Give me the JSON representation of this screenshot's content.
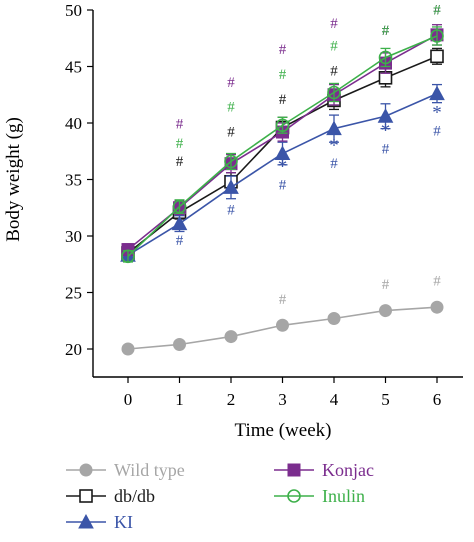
{
  "chart_data": {
    "type": "line",
    "xlabel": "Time (week)",
    "ylabel": "Body weight (g)",
    "x": [
      0,
      1,
      2,
      3,
      4,
      5,
      6
    ],
    "xticks": [
      "0",
      "1",
      "2",
      "3",
      "4",
      "5",
      "6"
    ],
    "yticks": [
      "20",
      "25",
      "30",
      "35",
      "40",
      "45",
      "50"
    ],
    "xlim": [
      -0.6,
      6.6
    ],
    "ylim": [
      17,
      50
    ],
    "grid": false,
    "legend_position": "bottom",
    "series": [
      {
        "name": "Wild type",
        "color": "#a6a6a6",
        "marker": "circle-filled",
        "values": [
          20.0,
          20.4,
          21.1,
          22.1,
          22.7,
          23.4,
          23.7
        ],
        "errors": [
          0.2,
          0.2,
          0.2,
          0.3,
          0.3,
          0.3,
          0.3
        ],
        "annotations": [
          {
            "x": 3,
            "y": 24.0,
            "text": "#",
            "color": "#a6a6a6"
          },
          {
            "x": 5,
            "y": 25.3,
            "text": "#",
            "color": "#a6a6a6"
          },
          {
            "x": 6,
            "y": 25.6,
            "text": "#",
            "color": "#a6a6a6"
          }
        ]
      },
      {
        "name": "db/db",
        "color": "#1a1a1a",
        "marker": "square-open",
        "values": [
          28.5,
          32.1,
          34.8,
          39.6,
          42.0,
          44.0,
          45.9
        ],
        "errors": [
          0.5,
          0.6,
          0.8,
          0.9,
          0.8,
          0.8,
          0.7
        ],
        "annotations": [
          {
            "x": 1,
            "y": 36.2,
            "text": "#",
            "color": "#1a1a1a"
          },
          {
            "x": 2,
            "y": 38.8,
            "text": "#",
            "color": "#1a1a1a"
          },
          {
            "x": 3,
            "y": 41.7,
            "text": "#",
            "color": "#1a1a1a"
          },
          {
            "x": 4,
            "y": 44.2,
            "text": "#",
            "color": "#1a1a1a"
          },
          {
            "x": 5,
            "y": 47.8,
            "text": "#",
            "color": "#1a1a1a"
          },
          {
            "x": 6,
            "y": 49.6,
            "text": "#",
            "color": "#1a1a1a"
          }
        ]
      },
      {
        "name": "KI",
        "color": "#3b55a8",
        "marker": "triangle-filled",
        "values": [
          28.3,
          31.1,
          34.3,
          37.3,
          39.5,
          40.6,
          42.6
        ],
        "errors": [
          0.4,
          0.7,
          1.0,
          1.0,
          1.2,
          1.1,
          0.8
        ],
        "annotations": [
          {
            "x": 1,
            "y": 29.2,
            "text": "#",
            "color": "#3b55a8"
          },
          {
            "x": 2,
            "y": 31.9,
            "text": "#",
            "color": "#3b55a8"
          },
          {
            "x": 3,
            "y": 35.6,
            "text": "*",
            "color": "#3b55a8"
          },
          {
            "x": 3,
            "y": 34.1,
            "text": "#",
            "color": "#3b55a8"
          },
          {
            "x": 4,
            "y": 37.5,
            "text": "*",
            "color": "#3b55a8"
          },
          {
            "x": 4,
            "y": 36.0,
            "text": "#",
            "color": "#3b55a8"
          },
          {
            "x": 5,
            "y": 38.8,
            "text": "*",
            "color": "#3b55a8"
          },
          {
            "x": 5,
            "y": 37.3,
            "text": "#",
            "color": "#3b55a8"
          },
          {
            "x": 6,
            "y": 40.4,
            "text": "*",
            "color": "#3b55a8"
          },
          {
            "x": 6,
            "y": 38.9,
            "text": "#",
            "color": "#3b55a8"
          }
        ]
      },
      {
        "name": "Konjac",
        "color": "#7b2d8e",
        "marker": "square-filled",
        "values": [
          28.8,
          32.5,
          36.4,
          39.2,
          42.5,
          45.3,
          47.8
        ],
        "errors": [
          0.5,
          0.6,
          0.8,
          0.8,
          0.9,
          0.9,
          0.9
        ],
        "annotations": [
          {
            "x": 1,
            "y": 39.5,
            "text": "#",
            "color": "#7b2d8e"
          },
          {
            "x": 2,
            "y": 43.2,
            "text": "#",
            "color": "#7b2d8e"
          },
          {
            "x": 3,
            "y": 46.1,
            "text": "#",
            "color": "#7b2d8e"
          },
          {
            "x": 4,
            "y": 48.4,
            "text": "#",
            "color": "#7b2d8e"
          },
          {
            "x": 5,
            "y": 47.8,
            "text": "#",
            "color": "#7b2d8e"
          },
          {
            "x": 6,
            "y": 49.6,
            "text": "#",
            "color": "#7b2d8e"
          }
        ]
      },
      {
        "name": "Inulin",
        "color": "#3db04a",
        "marker": "circle-open",
        "values": [
          28.2,
          32.6,
          36.6,
          39.8,
          42.7,
          45.8,
          47.7
        ],
        "errors": [
          0.5,
          0.6,
          0.7,
          0.7,
          0.8,
          0.8,
          0.8
        ],
        "annotations": [
          {
            "x": 1,
            "y": 37.8,
            "text": "#",
            "color": "#3db04a"
          },
          {
            "x": 2,
            "y": 41.0,
            "text": "#",
            "color": "#3db04a"
          },
          {
            "x": 3,
            "y": 43.9,
            "text": "#",
            "color": "#3db04a"
          },
          {
            "x": 4,
            "y": 46.4,
            "text": "#",
            "color": "#3db04a"
          },
          {
            "x": 5,
            "y": 47.8,
            "text": "#",
            "color": "#3db04a"
          },
          {
            "x": 6,
            "y": 49.6,
            "text": "#",
            "color": "#3db04a"
          }
        ]
      }
    ]
  }
}
